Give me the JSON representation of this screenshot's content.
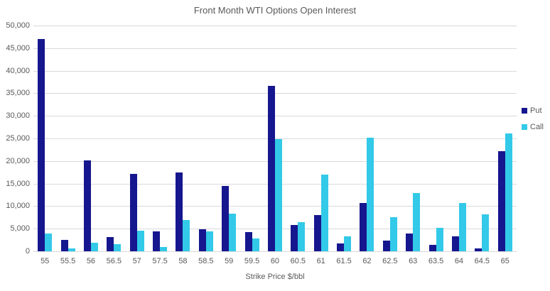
{
  "title": "Front Month WTI Options Open Interest",
  "colors": {
    "put": "#16168F",
    "call": "#33C9E8",
    "gridline": "#d9d9d9",
    "text": "#595959",
    "background": "#ffffff"
  },
  "chart_data": {
    "type": "bar",
    "title": "Front Month WTI Options Open Interest",
    "xlabel": "Strike Price $/bbl",
    "ylabel": "",
    "ylim": [
      0,
      50000
    ],
    "ytick_interval": 5000,
    "ytick_labels": [
      "0",
      "5,000",
      "10,000",
      "15,000",
      "20,000",
      "25,000",
      "30,000",
      "35,000",
      "40,000",
      "45,000",
      "50,000"
    ],
    "grid": true,
    "legend_position": "right",
    "categories": [
      "55",
      "55.5",
      "56",
      "56.5",
      "57",
      "57.5",
      "58",
      "58.5",
      "59",
      "59.5",
      "60",
      "60.5",
      "61",
      "61.5",
      "62",
      "62.5",
      "63",
      "63.5",
      "64",
      "64.5",
      "65"
    ],
    "series": [
      {
        "name": "Put",
        "color": "#16168F",
        "values": [
          47000,
          2500,
          20200,
          3200,
          17100,
          4400,
          17400,
          4800,
          14400,
          4200,
          36700,
          5800,
          8000,
          1700,
          10700,
          2400,
          3900,
          1400,
          3300,
          600,
          22200
        ]
      },
      {
        "name": "Call",
        "color": "#33C9E8",
        "values": [
          3900,
          700,
          1900,
          1500,
          4500,
          900,
          6900,
          4400,
          8400,
          2800,
          24900,
          6400,
          17000,
          3300,
          25100,
          7500,
          12900,
          5200,
          10700,
          8100,
          26100
        ]
      }
    ]
  }
}
